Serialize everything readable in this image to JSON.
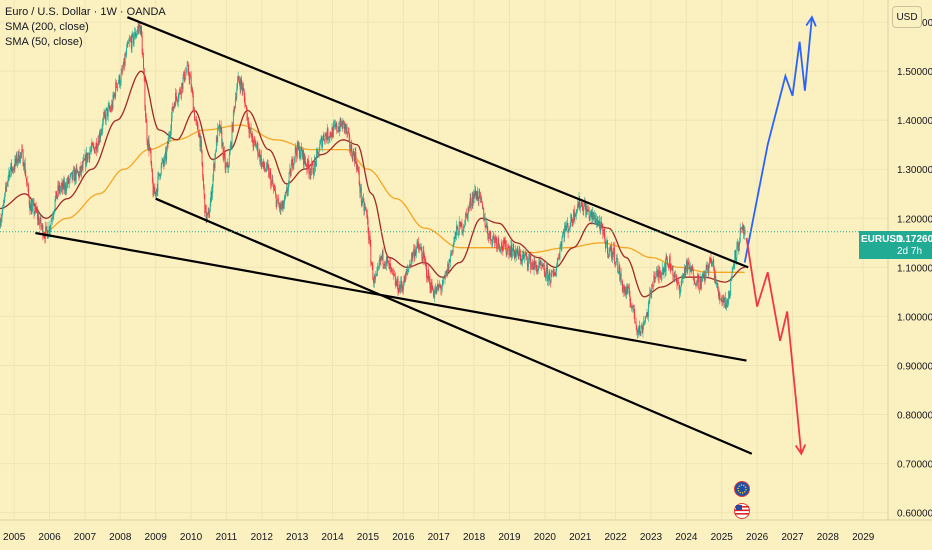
{
  "legend": {
    "title": "Euro / U.S. Dollar · 1W · OANDA",
    "sma200": "SMA (200, close)",
    "sma50": "SMA (50, close)"
  },
  "currency_label": "USD",
  "price_tag": {
    "symbol": "EURUSD",
    "value": "1.17260",
    "countdown": "2d 7h"
  },
  "colors": {
    "background": "#fbf0c0",
    "candle_up": "#22ab94",
    "candle_down": "#f23645",
    "sma200": "#f5a623",
    "sma50": "#a02a2a",
    "trendline": "#000000",
    "projection_up": "#2962ff",
    "projection_down": "#f23645",
    "price_line": "#22ab94"
  },
  "events": [
    {
      "icon": "eu-flag-icon"
    },
    {
      "icon": "us-flag-icon"
    }
  ],
  "chart_data": {
    "type": "line",
    "series_kind": "candlestick-weekly",
    "x_ticks": [
      "2005",
      "2006",
      "2007",
      "2008",
      "2009",
      "2010",
      "2011",
      "2012",
      "2013",
      "2014",
      "2015",
      "2016",
      "2017",
      "2018",
      "2019",
      "2020",
      "2021",
      "2022",
      "2023",
      "2024",
      "2025",
      "2026",
      "2027",
      "2028",
      "2029"
    ],
    "y_ticks": [
      "0.60000",
      "0.70000",
      "0.80000",
      "0.90000",
      "1.00000",
      "1.10000",
      "1.20000",
      "1.30000",
      "1.40000",
      "1.50000",
      "1.60000"
    ],
    "xlim": [
      2004.6,
      2029.7
    ],
    "ylim": [
      0.585,
      1.645
    ],
    "last_price": 1.1726,
    "price_anchors": [
      [
        2004.6,
        1.2
      ],
      [
        2004.9,
        1.3
      ],
      [
        2005.2,
        1.33
      ],
      [
        2005.5,
        1.22
      ],
      [
        2005.9,
        1.17
      ],
      [
        2006.3,
        1.26
      ],
      [
        2006.8,
        1.29
      ],
      [
        2007.2,
        1.34
      ],
      [
        2007.7,
        1.42
      ],
      [
        2007.95,
        1.48
      ],
      [
        2008.3,
        1.56
      ],
      [
        2008.55,
        1.59
      ],
      [
        2008.8,
        1.35
      ],
      [
        2008.95,
        1.25
      ],
      [
        2009.2,
        1.31
      ],
      [
        2009.6,
        1.45
      ],
      [
        2009.9,
        1.5
      ],
      [
        2010.2,
        1.38
      ],
      [
        2010.45,
        1.2
      ],
      [
        2010.8,
        1.38
      ],
      [
        2011.0,
        1.3
      ],
      [
        2011.35,
        1.48
      ],
      [
        2011.8,
        1.35
      ],
      [
        2012.1,
        1.3
      ],
      [
        2012.55,
        1.22
      ],
      [
        2013.0,
        1.34
      ],
      [
        2013.4,
        1.3
      ],
      [
        2013.8,
        1.37
      ],
      [
        2014.3,
        1.39
      ],
      [
        2014.6,
        1.33
      ],
      [
        2014.9,
        1.22
      ],
      [
        2015.2,
        1.07
      ],
      [
        2015.4,
        1.12
      ],
      [
        2015.9,
        1.06
      ],
      [
        2016.4,
        1.14
      ],
      [
        2016.9,
        1.05
      ],
      [
        2017.05,
        1.06
      ],
      [
        2017.6,
        1.18
      ],
      [
        2018.05,
        1.25
      ],
      [
        2018.5,
        1.16
      ],
      [
        2018.9,
        1.14
      ],
      [
        2019.4,
        1.12
      ],
      [
        2019.8,
        1.1
      ],
      [
        2020.2,
        1.08
      ],
      [
        2020.6,
        1.18
      ],
      [
        2021.0,
        1.23
      ],
      [
        2021.4,
        1.2
      ],
      [
        2021.9,
        1.13
      ],
      [
        2022.3,
        1.05
      ],
      [
        2022.7,
        0.97
      ],
      [
        2022.85,
        1.0
      ],
      [
        2023.1,
        1.08
      ],
      [
        2023.5,
        1.11
      ],
      [
        2023.8,
        1.06
      ],
      [
        2024.0,
        1.1
      ],
      [
        2024.4,
        1.07
      ],
      [
        2024.7,
        1.11
      ],
      [
        2024.95,
        1.04
      ],
      [
        2025.15,
        1.03
      ],
      [
        2025.4,
        1.13
      ],
      [
        2025.55,
        1.17
      ],
      [
        2025.65,
        1.1726
      ]
    ],
    "sma50_anchors": [
      [
        2004.6,
        1.22
      ],
      [
        2005.3,
        1.25
      ],
      [
        2005.9,
        1.2
      ],
      [
        2006.5,
        1.24
      ],
      [
        2007.2,
        1.3
      ],
      [
        2007.9,
        1.4
      ],
      [
        2008.6,
        1.5
      ],
      [
        2009.1,
        1.38
      ],
      [
        2009.6,
        1.36
      ],
      [
        2010.1,
        1.42
      ],
      [
        2010.6,
        1.32
      ],
      [
        2011.1,
        1.34
      ],
      [
        2011.6,
        1.42
      ],
      [
        2012.2,
        1.34
      ],
      [
        2012.7,
        1.27
      ],
      [
        2013.2,
        1.3
      ],
      [
        2013.7,
        1.33
      ],
      [
        2014.3,
        1.36
      ],
      [
        2014.7,
        1.35
      ],
      [
        2015.1,
        1.25
      ],
      [
        2015.6,
        1.12
      ],
      [
        2016.1,
        1.1
      ],
      [
        2016.6,
        1.11
      ],
      [
        2017.1,
        1.08
      ],
      [
        2017.6,
        1.11
      ],
      [
        2018.2,
        1.2
      ],
      [
        2018.7,
        1.19
      ],
      [
        2019.2,
        1.15
      ],
      [
        2019.8,
        1.12
      ],
      [
        2020.3,
        1.1
      ],
      [
        2020.8,
        1.14
      ],
      [
        2021.3,
        1.19
      ],
      [
        2021.8,
        1.18
      ],
      [
        2022.3,
        1.12
      ],
      [
        2022.8,
        1.04
      ],
      [
        2023.3,
        1.06
      ],
      [
        2023.9,
        1.08
      ],
      [
        2024.5,
        1.08
      ],
      [
        2025.1,
        1.07
      ],
      [
        2025.65,
        1.1
      ]
    ],
    "sma200_anchors": [
      [
        2005.8,
        1.17
      ],
      [
        2006.5,
        1.2
      ],
      [
        2007.4,
        1.25
      ],
      [
        2008.1,
        1.3
      ],
      [
        2008.8,
        1.34
      ],
      [
        2009.6,
        1.36
      ],
      [
        2010.4,
        1.38
      ],
      [
        2011.4,
        1.39
      ],
      [
        2012.4,
        1.36
      ],
      [
        2013.4,
        1.34
      ],
      [
        2014.4,
        1.34
      ],
      [
        2015.0,
        1.3
      ],
      [
        2015.8,
        1.24
      ],
      [
        2016.6,
        1.18
      ],
      [
        2017.6,
        1.14
      ],
      [
        2018.6,
        1.14
      ],
      [
        2019.6,
        1.13
      ],
      [
        2020.6,
        1.14
      ],
      [
        2021.6,
        1.15
      ],
      [
        2022.3,
        1.14
      ],
      [
        2023.0,
        1.12
      ],
      [
        2023.8,
        1.1
      ],
      [
        2024.6,
        1.09
      ],
      [
        2025.65,
        1.09
      ]
    ],
    "trendlines": [
      {
        "from": [
          2008.2,
          1.61
        ],
        "to": [
          2025.75,
          1.1
        ]
      },
      {
        "from": [
          2005.6,
          1.17
        ],
        "to": [
          2025.7,
          0.91
        ]
      },
      {
        "from": [
          2009.0,
          1.24
        ],
        "to": [
          2025.85,
          0.72
        ]
      }
    ],
    "projection_up": [
      [
        2025.65,
        1.11
      ],
      [
        2026.3,
        1.35
      ],
      [
        2026.8,
        1.49
      ],
      [
        2027.0,
        1.45
      ],
      [
        2027.2,
        1.56
      ],
      [
        2027.35,
        1.46
      ],
      [
        2027.55,
        1.61
      ]
    ],
    "projection_down": [
      [
        2025.7,
        1.16
      ],
      [
        2026.0,
        1.02
      ],
      [
        2026.3,
        1.09
      ],
      [
        2026.65,
        0.95
      ],
      [
        2026.85,
        1.01
      ],
      [
        2027.25,
        0.72
      ]
    ]
  }
}
